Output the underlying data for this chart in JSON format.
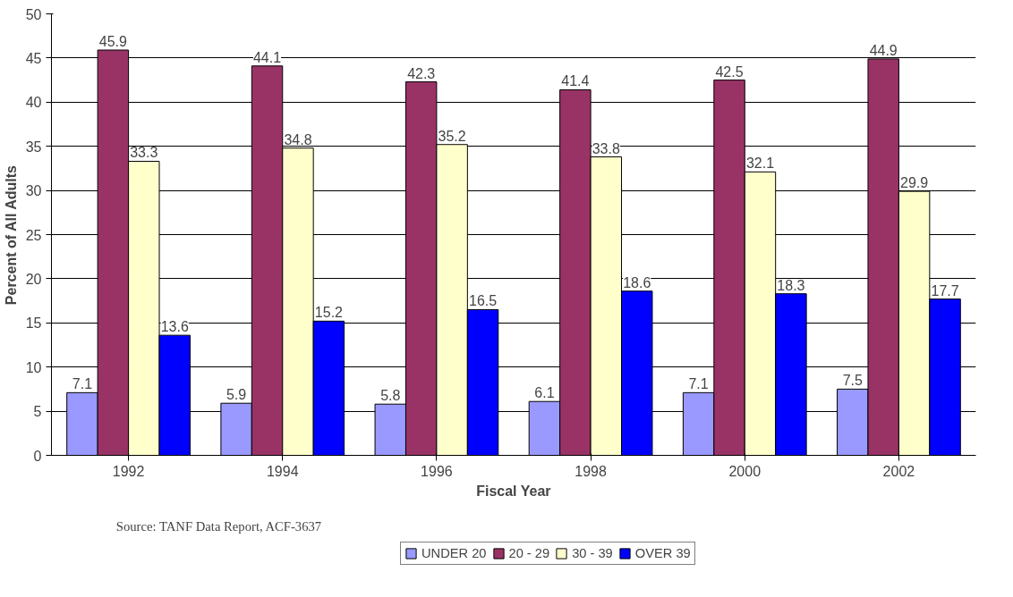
{
  "chart_data": {
    "type": "bar",
    "xlabel": "Fiscal Year",
    "ylabel": "Percent of All Adults",
    "categories": [
      "1992",
      "1994",
      "1996",
      "1998",
      "2000",
      "2002"
    ],
    "series": [
      {
        "name": "UNDER 20",
        "color": "#9999ff",
        "values": [
          7.1,
          5.9,
          5.8,
          6.1,
          7.1,
          7.5
        ]
      },
      {
        "name": "20 - 29",
        "color": "#993366",
        "values": [
          45.9,
          44.1,
          42.3,
          41.4,
          42.5,
          44.9
        ]
      },
      {
        "name": "30 - 39",
        "color": "#ffffcc",
        "values": [
          33.3,
          34.8,
          35.2,
          33.8,
          32.1,
          29.9
        ]
      },
      {
        "name": "OVER 39",
        "color": "#0000ff",
        "values": [
          13.6,
          15.2,
          16.5,
          18.6,
          18.3,
          17.7
        ]
      }
    ],
    "ylim": [
      0,
      50
    ],
    "yticks": [
      0,
      5,
      10,
      15,
      20,
      25,
      30,
      35,
      40,
      45,
      50
    ],
    "grid": "y",
    "legend": "bottom",
    "data_labels": true,
    "annotations": [
      "Source: TANF Data Report, ACF-3637"
    ]
  }
}
